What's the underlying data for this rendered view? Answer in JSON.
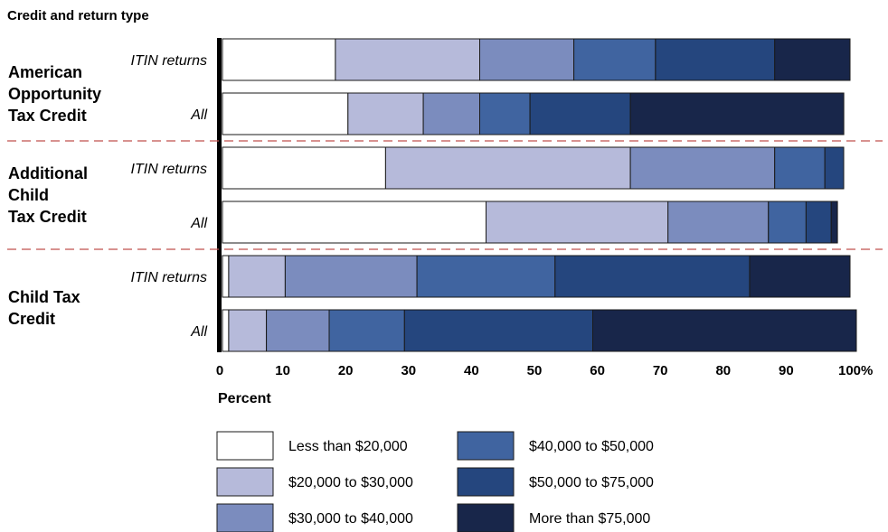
{
  "chart_data": {
    "type": "bar",
    "orientation": "horizontal",
    "stacked": true,
    "title": "Credit and return type",
    "xlabel": "Percent",
    "xlim": [
      0,
      100
    ],
    "xticks": [
      "0",
      "10",
      "20",
      "30",
      "40",
      "50",
      "60",
      "70",
      "80",
      "90",
      "100%"
    ],
    "groups": [
      {
        "label_lines": [
          "American",
          "Opportunity",
          "Tax Credit"
        ],
        "rows": [
          "ITIN returns",
          "All"
        ]
      },
      {
        "label_lines": [
          "Additional",
          "Child",
          "Tax Credit"
        ],
        "rows": [
          "ITIN returns",
          "All"
        ]
      },
      {
        "label_lines": [
          "Child Tax",
          "Credit"
        ],
        "rows": [
          "ITIN returns",
          "All"
        ]
      }
    ],
    "categories": [
      "ITIN returns",
      "All",
      "ITIN returns",
      "All",
      "ITIN returns",
      "All"
    ],
    "series": [
      {
        "name": "Less than $20,000",
        "color": "#ffffff",
        "values": [
          18,
          20,
          26,
          42,
          1,
          1
        ]
      },
      {
        "name": "$20,000 to $30,000",
        "color": "#b6bada",
        "values": [
          23,
          12,
          39,
          29,
          9,
          6
        ]
      },
      {
        "name": "$30,000 to $40,000",
        "color": "#7b8cbe",
        "values": [
          15,
          9,
          23,
          16,
          21,
          10
        ]
      },
      {
        "name": "$40,000 to $50,000",
        "color": "#4064a0",
        "values": [
          13,
          8,
          8,
          6,
          22,
          12
        ]
      },
      {
        "name": "$50,000 to $75,000",
        "color": "#25467e",
        "values": [
          19,
          16,
          3,
          4,
          31,
          30
        ]
      },
      {
        "name": "More than $75,000",
        "color": "#18264a",
        "values": [
          12,
          34,
          0,
          1,
          16,
          42
        ]
      }
    ],
    "grid": false,
    "legend": "bottom"
  }
}
